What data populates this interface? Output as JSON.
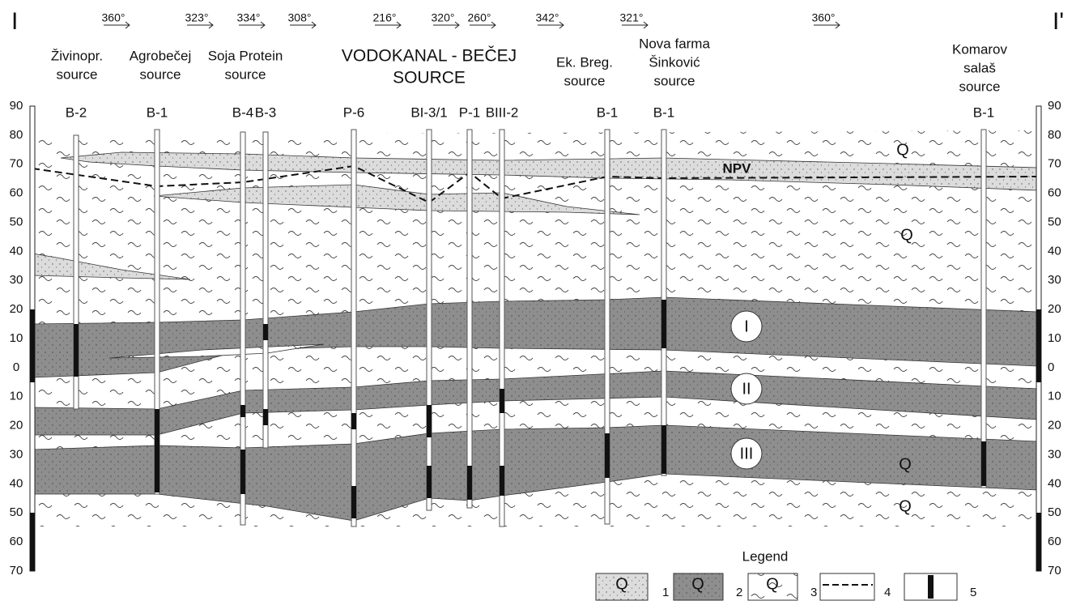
{
  "section_ends": [
    "I",
    "I'"
  ],
  "bearings": [
    "360°",
    "323°",
    "334°",
    "308°",
    "216°",
    "320°",
    "260°",
    "342°",
    "321°",
    "360°"
  ],
  "sources": [
    {
      "lines": [
        "Živinopr.",
        "source"
      ]
    },
    {
      "lines": [
        "Agrobečej",
        "source"
      ]
    },
    {
      "lines": [
        "Soja Protein",
        "source"
      ]
    },
    {
      "lines": [
        "VODOKANAL - BEČEJ",
        "SOURCE"
      ]
    },
    {
      "lines": [
        "Ek. Breg.",
        "source"
      ]
    },
    {
      "lines": [
        "Nova farma",
        "Šinković",
        "source"
      ]
    },
    {
      "lines": [
        "Komarov",
        "salaš",
        "source"
      ]
    }
  ],
  "wells": [
    "B-2",
    "B-1",
    "B-4",
    "B-3",
    "P-6",
    "BI-3/1",
    "P-1",
    "BIII-2",
    "B-1",
    "B-1",
    "B-1"
  ],
  "depth_labels": [
    90,
    80,
    70,
    60,
    50,
    40,
    30,
    20,
    10,
    0,
    10,
    20,
    30,
    40,
    50,
    60,
    70
  ],
  "layer_labels": [
    "Q",
    "NPV",
    "Q",
    "I",
    "II",
    "III",
    "Q",
    "Q"
  ],
  "legend": {
    "title": "Legend",
    "items": [
      {
        "symbol": "Q",
        "number": 1
      },
      {
        "symbol": "Q",
        "number": 2
      },
      {
        "symbol": "Q",
        "number": 3
      },
      {
        "number": 4
      },
      {
        "number": 5
      }
    ]
  }
}
